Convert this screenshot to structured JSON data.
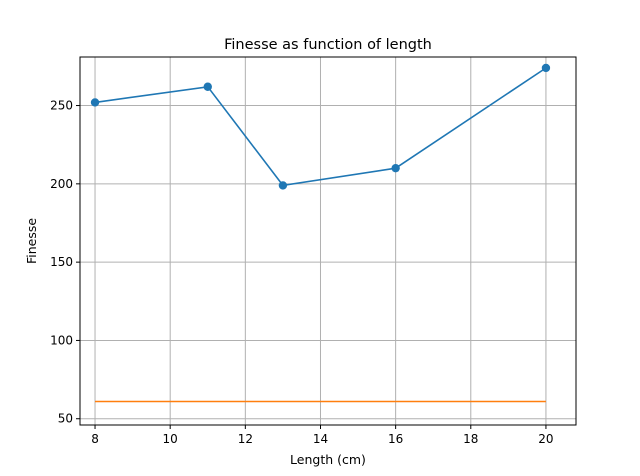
{
  "chart_data": {
    "type": "line",
    "title": "Finesse as function of length",
    "xlabel": "Length (cm)",
    "ylabel": "Finesse",
    "xlim": [
      7.6,
      20.8
    ],
    "ylim": [
      46,
      281
    ],
    "xticks": [
      8,
      10,
      12,
      14,
      16,
      18,
      20
    ],
    "yticks": [
      50,
      100,
      150,
      200,
      250
    ],
    "grid": true,
    "legend": false,
    "series": [
      {
        "x": [
          8,
          11,
          13,
          16,
          20
        ],
        "values": [
          252,
          262,
          199,
          210,
          274
        ],
        "color": "#1f77b4",
        "marker": "circle"
      },
      {
        "x": [
          8,
          20
        ],
        "values": [
          61,
          61
        ],
        "color": "#ff7f0e",
        "marker": "none"
      }
    ]
  }
}
